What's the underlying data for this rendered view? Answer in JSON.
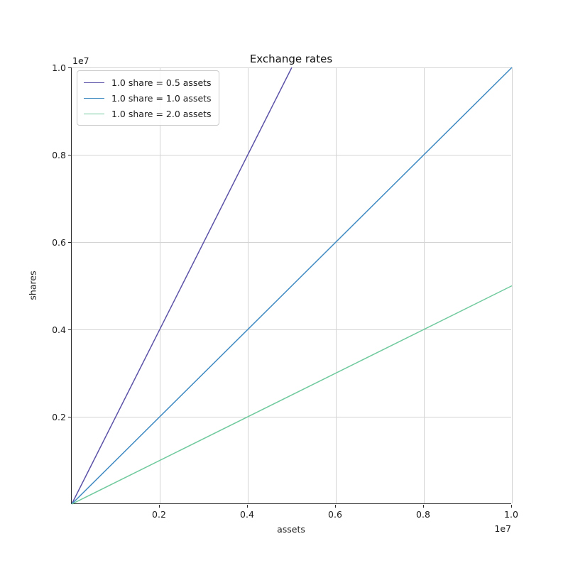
{
  "chart_data": {
    "type": "line",
    "title": "Exchange rates",
    "xlabel": "assets",
    "ylabel": "shares",
    "xlim": [
      0,
      10000000
    ],
    "ylim": [
      0,
      10000000
    ],
    "x_offset_text": "1e7",
    "y_offset_text": "1e7",
    "grid": true,
    "legend_position": "upper left",
    "xticks": {
      "values": [
        2000000,
        4000000,
        6000000,
        8000000,
        10000000
      ],
      "labels": [
        "0.2",
        "0.4",
        "0.6",
        "0.8",
        "1.0"
      ]
    },
    "yticks": {
      "values": [
        2000000,
        4000000,
        6000000,
        8000000,
        10000000
      ],
      "labels": [
        "0.2",
        "0.4",
        "0.6",
        "0.8",
        "1.0"
      ]
    },
    "series": [
      {
        "name": "1.0 share = 0.5 assets",
        "color": "#5b52a8",
        "assets_per_share": 0.5,
        "points": [
          [
            0,
            0
          ],
          [
            5000000,
            10000000
          ]
        ]
      },
      {
        "name": "1.0 share = 1.0 assets",
        "color": "#3f8ac2",
        "assets_per_share": 1.0,
        "points": [
          [
            0,
            0
          ],
          [
            10000000,
            10000000
          ]
        ]
      },
      {
        "name": "1.0 share = 2.0 assets",
        "color": "#70ca9e",
        "assets_per_share": 2.0,
        "points": [
          [
            0,
            0
          ],
          [
            10000000,
            5000000
          ]
        ]
      }
    ],
    "colors": {
      "grid": "#d4d4d4",
      "spine": "#2b2b2b",
      "text": "#1c1c1c"
    }
  }
}
